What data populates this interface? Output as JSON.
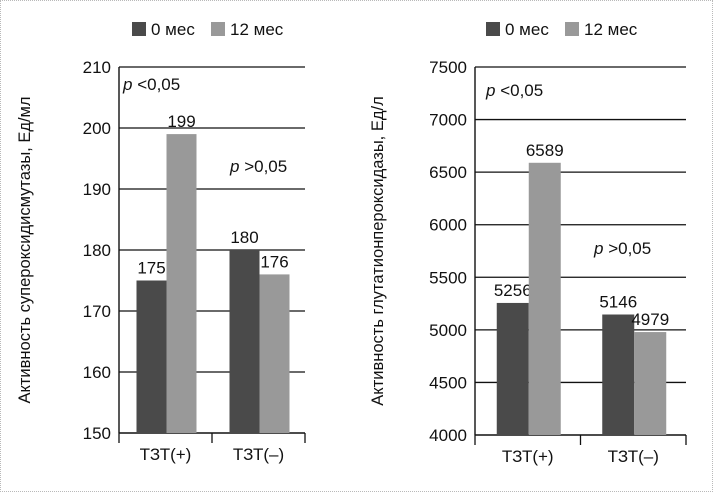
{
  "chart_data": [
    {
      "type": "bar",
      "ylabel": "Активность супероксидисмутазы, Ед/мл",
      "categories": [
        "ТЗТ(+)",
        "ТЗТ(–)"
      ],
      "series": [
        {
          "name": "0 мес",
          "values": [
            175,
            180
          ],
          "color": "#4a4a4a"
        },
        {
          "name": "12 мес",
          "values": [
            199,
            176
          ],
          "color": "#999999"
        }
      ],
      "ylim": [
        150,
        210
      ],
      "yticks": [
        150,
        160,
        170,
        180,
        190,
        200,
        210
      ],
      "data_labels": [
        [
          "175",
          "180"
        ],
        [
          "199",
          "176"
        ]
      ],
      "annotations": [
        {
          "prefix": "p",
          "text": " <0,05",
          "category": 0
        },
        {
          "prefix": "p",
          "text": " >0,05",
          "category": 1
        }
      ],
      "legend_position": "top"
    },
    {
      "type": "bar",
      "ylabel": "Активность глутатионпероксидазы, Ед/л",
      "categories": [
        "ТЗТ(+)",
        "ТЗТ(–)"
      ],
      "series": [
        {
          "name": "0 мес",
          "values": [
            5256,
            5146
          ],
          "color": "#4a4a4a"
        },
        {
          "name": "12 мес",
          "values": [
            6589,
            4979
          ],
          "color": "#999999"
        }
      ],
      "ylim": [
        4000,
        7500
      ],
      "yticks": [
        4000,
        4500,
        5000,
        5500,
        6000,
        6500,
        7000,
        7500
      ],
      "data_labels": [
        [
          "5256",
          "5146"
        ],
        [
          "6589",
          "4979"
        ]
      ],
      "annotations": [
        {
          "prefix": "p",
          "text": " <0,05",
          "category": 0
        },
        {
          "prefix": "p",
          "text": " >0,05",
          "category": 1
        }
      ],
      "legend_position": "top"
    }
  ]
}
